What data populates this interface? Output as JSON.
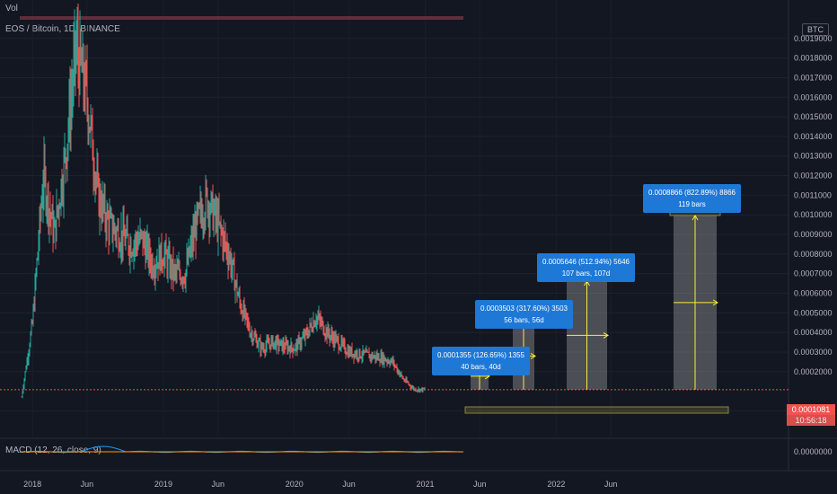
{
  "header": {
    "volume_label": "Vol",
    "symbol_label": "EOS / Bitcoin, 1D, BINANCE",
    "currency_badge": "BTC",
    "macd_label": "MACD (12, 26, close, 9)"
  },
  "price_axis": {
    "ticks": [
      "0.0019000",
      "0.0018000",
      "0.0017000",
      "0.0016000",
      "0.0015000",
      "0.0014000",
      "0.0013000",
      "0.0012000",
      "0.0011000",
      "0.0010000",
      "0.0009000",
      "0.0008000",
      "0.0007000",
      "0.0006000",
      "0.0005000",
      "0.0004000",
      "0.0003000",
      "0.0002000",
      "-0.0000000"
    ],
    "last_price": "0.0001081",
    "countdown": "10:56:18",
    "macd_zero": "0.0000000"
  },
  "time_axis": {
    "ticks": [
      "2018",
      "Jun",
      "2019",
      "Jun",
      "2020",
      "Jun",
      "2021",
      "Jun",
      "2022",
      "Jun"
    ]
  },
  "measurements": [
    {
      "line1": "0.0001355 (126.65%) 1355",
      "line2": "40 bars, 40d"
    },
    {
      "line1": "0.0003503 (317.60%) 3503",
      "line2": "56 bars, 56d"
    },
    {
      "line1": "0.0005646 (512.94%) 5646",
      "line2": "107 bars, 107d"
    },
    {
      "line1": "0.0008866 (822.89%) 8866",
      "line2": "119 bars"
    }
  ],
  "colors": {
    "background": "#131722",
    "up": "#26a69a",
    "down": "#ef5350",
    "measure_label": "#1e78d6",
    "arrow": "#ffeb3b"
  },
  "chart_data": {
    "type": "line",
    "x": [
      "2017-12",
      "2018-01",
      "2018-02",
      "2018-03",
      "2018-04",
      "2018-05",
      "2018-06",
      "2018-07",
      "2018-08",
      "2018-09",
      "2018-10",
      "2018-11",
      "2018-12",
      "2019-01",
      "2019-02",
      "2019-03",
      "2019-04",
      "2019-05",
      "2019-06",
      "2019-07",
      "2019-08",
      "2019-09",
      "2019-10",
      "2019-11",
      "2019-12",
      "2020-01",
      "2020-02",
      "2020-03",
      "2020-04",
      "2020-05",
      "2020-06",
      "2020-07",
      "2020-08",
      "2020-09",
      "2020-10",
      "2020-11",
      "2020-12",
      "2021-01"
    ],
    "series": [
      {
        "values": [
          7e-05,
          0.00045,
          0.0012,
          0.0009,
          0.0013,
          0.00185,
          0.0016,
          0.0011,
          0.00095,
          0.0009,
          0.00085,
          0.00088,
          0.00075,
          0.0008,
          0.0007,
          0.0007,
          0.00095,
          0.00108,
          0.00095,
          0.0008,
          0.00055,
          0.0004,
          0.00032,
          0.00035,
          0.00033,
          0.00032,
          0.00038,
          0.00048,
          0.0004,
          0.00035,
          0.0003,
          0.00029,
          0.00028,
          0.00027,
          0.00025,
          0.00016,
          0.00011,
          0.000108
        ]
      }
    ],
    "ylim": [
      -1e-05,
      0.0019
    ],
    "measurements_pct": [
      126.65,
      317.6,
      512.94,
      822.89
    ]
  }
}
